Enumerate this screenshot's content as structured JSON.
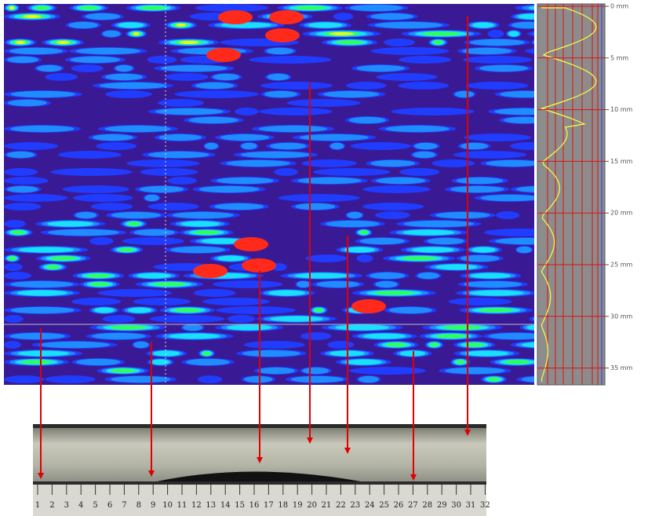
{
  "depth_scale": {
    "labels": [
      "0 mm",
      "5 mm",
      "10 mm",
      "15 mm",
      "20 mm",
      "25 mm",
      "30 mm",
      "35 mm"
    ]
  },
  "ruler": {
    "labels": [
      "1",
      "2",
      "3",
      "4",
      "5",
      "6",
      "7",
      "8",
      "9",
      "10",
      "11",
      "12",
      "13",
      "14",
      "15",
      "16",
      "17",
      "18",
      "19",
      "20",
      "21",
      "22",
      "23",
      "24",
      "25",
      "26",
      "27",
      "28",
      "29",
      "30",
      "31",
      "32"
    ]
  }
}
